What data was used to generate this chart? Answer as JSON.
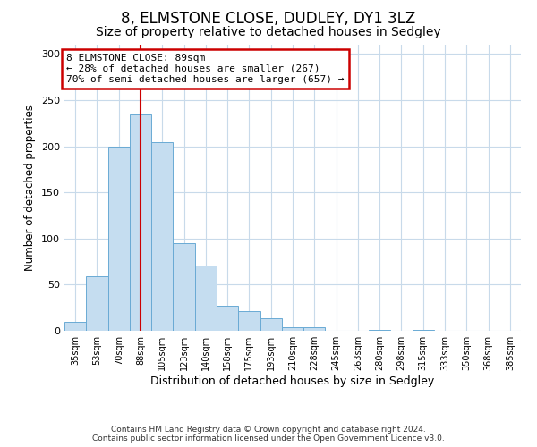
{
  "title": "8, ELMSTONE CLOSE, DUDLEY, DY1 3LZ",
  "subtitle": "Size of property relative to detached houses in Sedgley",
  "xlabel": "Distribution of detached houses by size in Sedgley",
  "ylabel": "Number of detached properties",
  "bar_labels": [
    "35sqm",
    "53sqm",
    "70sqm",
    "88sqm",
    "105sqm",
    "123sqm",
    "140sqm",
    "158sqm",
    "175sqm",
    "193sqm",
    "210sqm",
    "228sqm",
    "245sqm",
    "263sqm",
    "280sqm",
    "298sqm",
    "315sqm",
    "333sqm",
    "350sqm",
    "368sqm",
    "385sqm"
  ],
  "bar_values": [
    10,
    59,
    200,
    234,
    204,
    95,
    71,
    27,
    21,
    14,
    4,
    4,
    0,
    0,
    1,
    0,
    1,
    0,
    0,
    0,
    0
  ],
  "bar_color": "#c5ddf0",
  "bar_edge_color": "#6aaad4",
  "grid_color": "#c8daea",
  "vline_x_index": 3,
  "vline_color": "#cc0000",
  "annotation_text": "8 ELMSTONE CLOSE: 89sqm\n← 28% of detached houses are smaller (267)\n70% of semi-detached houses are larger (657) →",
  "annotation_box_color": "#cc0000",
  "ylim": [
    0,
    310
  ],
  "yticks": [
    0,
    50,
    100,
    150,
    200,
    250,
    300
  ],
  "footer_line1": "Contains HM Land Registry data © Crown copyright and database right 2024.",
  "footer_line2": "Contains public sector information licensed under the Open Government Licence v3.0.",
  "background_color": "#ffffff",
  "title_fontsize": 12,
  "subtitle_fontsize": 10
}
